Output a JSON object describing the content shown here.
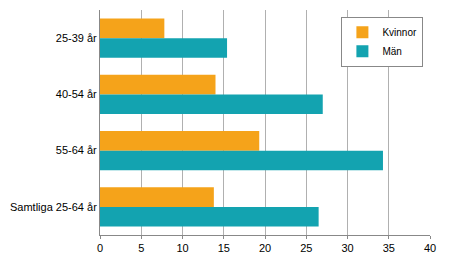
{
  "chart_data": {
    "type": "bar",
    "orientation": "horizontal",
    "categories": [
      "25-39 år",
      "40-54 år",
      "55-64 år",
      "Samtliga 25-64 år"
    ],
    "series": [
      {
        "name": "Kvinnor",
        "color": "#f5a31a",
        "values": [
          7.8,
          14,
          19.3,
          13.8
        ]
      },
      {
        "name": "Män",
        "color": "#13a3b0",
        "values": [
          15.4,
          27,
          34.3,
          26.5
        ]
      }
    ],
    "xlim": [
      0,
      40
    ],
    "xticks": [
      0,
      5,
      10,
      15,
      20,
      25,
      30,
      35,
      40
    ],
    "grid": true,
    "legend": "top-right"
  }
}
